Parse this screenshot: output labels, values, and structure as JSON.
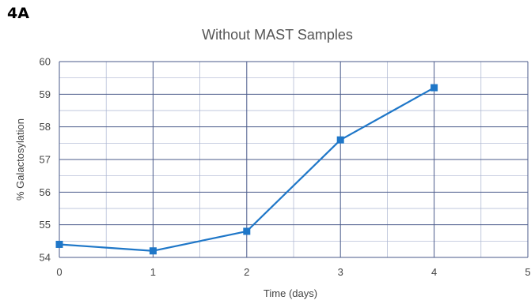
{
  "panel_label": "4A",
  "chart_data": {
    "type": "line",
    "title": "Without MAST Samples",
    "xlabel": "Time (days)",
    "ylabel": "% Galactosylation",
    "xlim": [
      0,
      5
    ],
    "ylim": [
      54,
      60
    ],
    "x_ticks": [
      "0",
      "1",
      "2",
      "3",
      "4",
      "5"
    ],
    "y_ticks": [
      "54",
      "55",
      "56",
      "57",
      "58",
      "59",
      "60"
    ],
    "grid": true,
    "series": [
      {
        "x": [
          0,
          1,
          2,
          3,
          4
        ],
        "y": [
          54.4,
          54.2,
          54.8,
          57.6,
          59.2
        ],
        "color": "#1f77c8",
        "marker": "square"
      }
    ],
    "colors": {
      "grid_major": "#4a5a8a",
      "grid_minor": "#aab4d0"
    }
  }
}
